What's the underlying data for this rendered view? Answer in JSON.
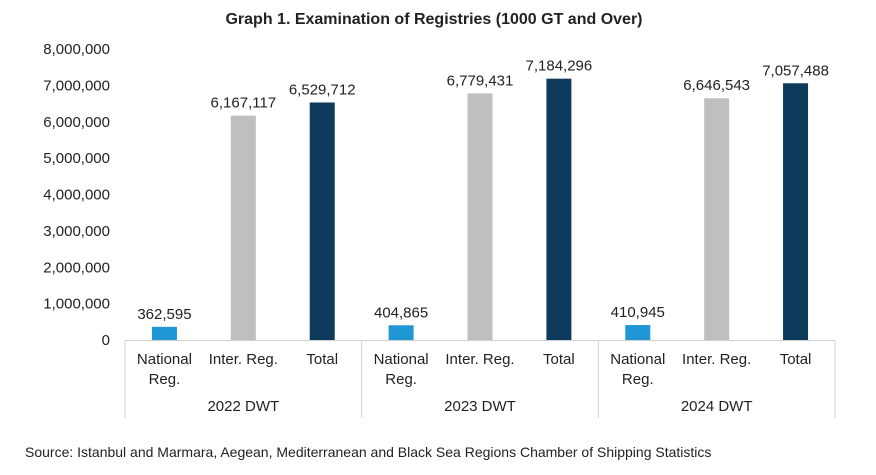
{
  "chart_data": {
    "type": "bar",
    "title": "Graph 1. Examination of Registries (1000 GT and Over)",
    "groups": [
      "2022 DWT",
      "2023 DWT",
      "2024 DWT"
    ],
    "categories": [
      [
        "National",
        "Reg."
      ],
      [
        "Inter. Reg."
      ],
      [
        "Total"
      ]
    ],
    "values": [
      [
        362595,
        6167117,
        6529712
      ],
      [
        404865,
        6779431,
        7184296
      ],
      [
        410945,
        6646543,
        7057488
      ]
    ],
    "value_labels": [
      [
        "362,595",
        "6,167,117",
        "6,529,712"
      ],
      [
        "404,865",
        "6,779,431",
        "7,184,296"
      ],
      [
        "410,945",
        "6,646,543",
        "7,057,488"
      ]
    ],
    "colors": [
      "#1f97d4",
      "#bfbfbf",
      "#0e3a5c"
    ],
    "ylim": [
      0,
      8000000
    ],
    "yticks": [
      "0",
      "1,000,000",
      "2,000,000",
      "3,000,000",
      "4,000,000",
      "5,000,000",
      "6,000,000",
      "7,000,000",
      "8,000,000"
    ],
    "grid": false,
    "xlabel": "",
    "ylabel": ""
  },
  "source": "Source: Istanbul and Marmara, Aegean, Mediterranean and Black Sea Regions Chamber of Shipping Statistics"
}
